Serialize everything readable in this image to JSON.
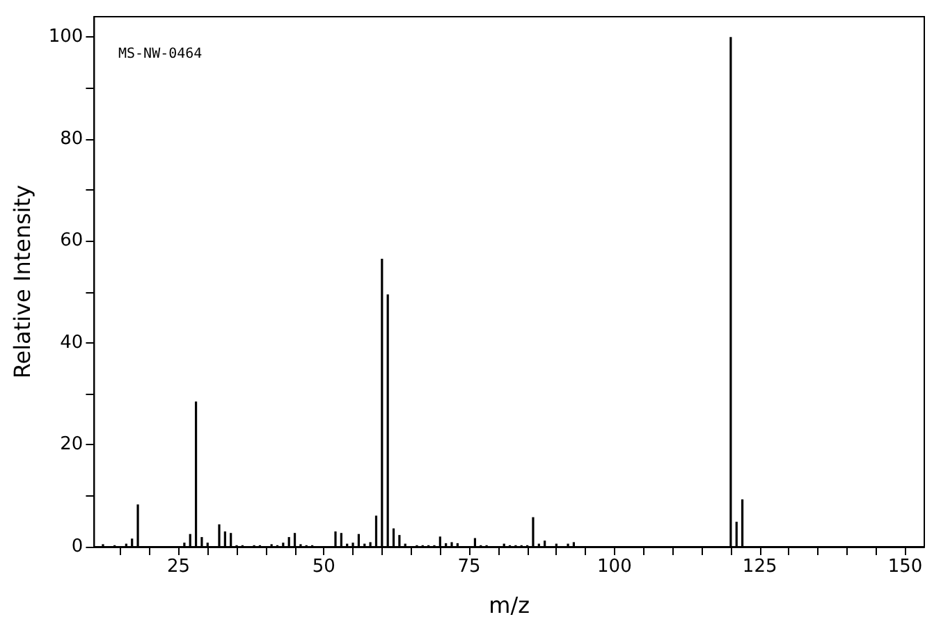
{
  "chart_data": {
    "type": "bar",
    "xlabel": "m/z",
    "ylabel": "Relative Intensity",
    "annotations": [
      "MS-NW-0464"
    ],
    "x": [
      12,
      14,
      16,
      17,
      18,
      26,
      27,
      28,
      29,
      30,
      32,
      33,
      34,
      35,
      36,
      38,
      39,
      41,
      42,
      43,
      44,
      45,
      46,
      47,
      48,
      52,
      53,
      54,
      55,
      56,
      57,
      58,
      59,
      60,
      61,
      62,
      63,
      64,
      66,
      67,
      68,
      69,
      70,
      71,
      72,
      73,
      76,
      77,
      78,
      81,
      82,
      83,
      84,
      85,
      86,
      87,
      88,
      90,
      92,
      93,
      120,
      121,
      122
    ],
    "values": [
      0.5,
      0.3,
      0.6,
      1.6,
      8.3,
      0.8,
      2.5,
      28.5,
      1.9,
      0.8,
      4.4,
      3.0,
      2.7,
      0.3,
      0.3,
      0.3,
      0.3,
      0.5,
      0.3,
      0.8,
      1.9,
      2.7,
      0.5,
      0.3,
      0.3,
      3.0,
      2.7,
      0.6,
      0.8,
      2.5,
      0.6,
      0.9,
      6.1,
      56.5,
      49.5,
      3.6,
      2.3,
      0.6,
      0.3,
      0.3,
      0.3,
      0.3,
      2.0,
      0.7,
      0.9,
      0.7,
      1.7,
      0.3,
      0.3,
      0.6,
      0.3,
      0.3,
      0.3,
      0.3,
      5.8,
      0.6,
      1.2,
      0.6,
      0.6,
      0.9,
      100,
      4.9,
      9.3
    ],
    "color": "#000000",
    "xlim": [
      10.5,
      153.3
    ],
    "xticks": [
      {
        "value": 15,
        "label": null
      },
      {
        "value": 20,
        "label": null
      },
      25,
      {
        "value": 30,
        "label": null
      },
      {
        "value": 35,
        "label": null
      },
      {
        "value": 40,
        "label": null
      },
      {
        "value": 45,
        "label": null
      },
      50,
      {
        "value": 55,
        "label": null
      },
      {
        "value": 60,
        "label": null
      },
      {
        "value": 65,
        "label": null
      },
      {
        "value": 70,
        "label": null
      },
      75,
      {
        "value": 80,
        "label": null
      },
      {
        "value": 85,
        "label": null
      },
      {
        "value": 90,
        "label": null
      },
      {
        "value": 95,
        "label": null
      },
      100,
      {
        "value": 105,
        "label": null
      },
      {
        "value": 110,
        "label": null
      },
      {
        "value": 115,
        "label": null
      },
      {
        "value": 120,
        "label": null
      },
      125,
      {
        "value": 130,
        "label": null
      },
      {
        "value": 135,
        "label": null
      },
      {
        "value": 140,
        "label": null
      },
      {
        "value": 145,
        "label": null
      },
      150
    ],
    "ylim": [
      0,
      104
    ],
    "yticks": [
      0,
      {
        "value": 10,
        "label": null
      },
      20,
      {
        "value": 30,
        "label": null
      },
      40,
      {
        "value": 50,
        "label": null
      },
      60,
      {
        "value": 70,
        "label": null
      },
      80,
      {
        "value": 90,
        "label": null
      },
      100
    ]
  }
}
